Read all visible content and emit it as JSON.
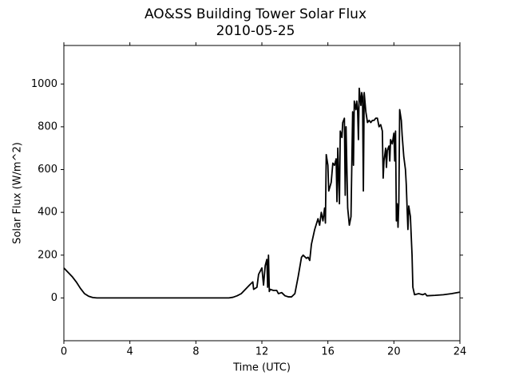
{
  "chart_data": {
    "type": "line",
    "title": "AO&SS Building Tower Solar Flux",
    "subtitle": "2010-05-25",
    "x_label": "Time (UTC)",
    "y_label": "Solar Flux (W/m^2)",
    "xlim": [
      0,
      24
    ],
    "xticks": [
      0,
      4,
      8,
      12,
      16,
      20,
      24
    ],
    "ylim": [
      -200,
      1180
    ],
    "yticks": [
      0,
      200,
      400,
      600,
      800,
      1000
    ],
    "grid": false,
    "series": [
      {
        "color": "#000000",
        "x": [
          0,
          0.25,
          0.5,
          0.75,
          1,
          1.25,
          1.5,
          1.75,
          2,
          10,
          10.25,
          10.5,
          10.75,
          11,
          11.25,
          11.45,
          11.5,
          11.7,
          11.8,
          12,
          12.1,
          12.2,
          12.3,
          12.35,
          12.4,
          12.45,
          12.5,
          12.7,
          12.9,
          13,
          13.2,
          13.4,
          13.6,
          13.8,
          14,
          14.2,
          14.4,
          14.5,
          14.7,
          14.8,
          14.9,
          15,
          15.2,
          15.4,
          15.5,
          15.6,
          15.7,
          15.8,
          15.85,
          15.9,
          16,
          16.05,
          16.2,
          16.3,
          16.4,
          16.5,
          16.55,
          16.6,
          16.7,
          16.75,
          16.85,
          16.9,
          17,
          17.05,
          17.1,
          17.2,
          17.3,
          17.4,
          17.5,
          17.55,
          17.6,
          17.7,
          17.75,
          17.8,
          17.85,
          17.9,
          18,
          18.05,
          18.1,
          18.15,
          18.2,
          18.3,
          18.4,
          18.5,
          18.6,
          18.7,
          18.8,
          18.9,
          19,
          19.05,
          19.1,
          19.2,
          19.3,
          19.35,
          19.4,
          19.5,
          19.55,
          19.6,
          19.7,
          19.75,
          19.8,
          19.9,
          20,
          20.05,
          20.1,
          20.15,
          20.2,
          20.25,
          20.3,
          20.35,
          20.45,
          20.5,
          20.6,
          20.7,
          20.75,
          20.8,
          20.85,
          20.9,
          21,
          21.1,
          21.15,
          21.25,
          21.5,
          21.75,
          21.9,
          22,
          22.5,
          23,
          23.5,
          24
        ],
        "values": [
          140,
          120,
          100,
          75,
          45,
          20,
          8,
          2,
          0,
          0,
          3,
          10,
          20,
          40,
          60,
          75,
          40,
          50,
          110,
          140,
          60,
          150,
          180,
          50,
          200,
          30,
          40,
          35,
          35,
          20,
          25,
          10,
          5,
          5,
          20,
          100,
          190,
          200,
          185,
          190,
          175,
          250,
          320,
          370,
          340,
          400,
          360,
          420,
          350,
          670,
          620,
          500,
          540,
          630,
          620,
          650,
          450,
          700,
          440,
          780,
          750,
          820,
          840,
          480,
          800,
          420,
          340,
          380,
          870,
          620,
          920,
          880,
          920,
          880,
          740,
          980,
          900,
          960,
          940,
          500,
          960,
          870,
          820,
          830,
          820,
          830,
          830,
          840,
          840,
          820,
          800,
          810,
          780,
          560,
          640,
          700,
          610,
          690,
          710,
          640,
          740,
          720,
          770,
          640,
          780,
          360,
          440,
          330,
          450,
          880,
          830,
          760,
          660,
          600,
          530,
          420,
          320,
          430,
          380,
          200,
          50,
          15,
          20,
          15,
          20,
          10,
          12,
          15,
          20,
          27
        ]
      }
    ]
  }
}
